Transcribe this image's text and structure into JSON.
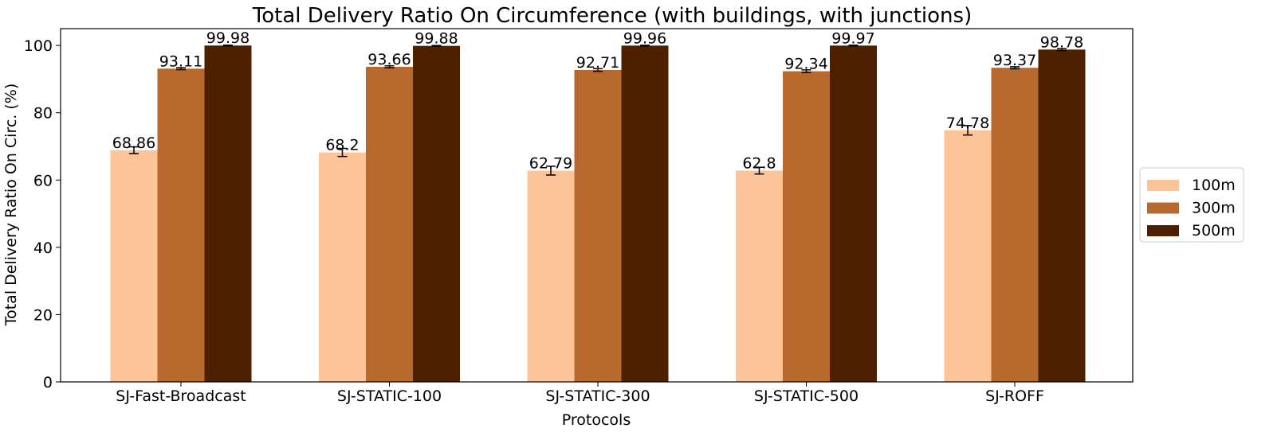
{
  "chart_data": {
    "type": "bar",
    "title": "Total Delivery Ratio On Circumference (with buildings, with junctions)",
    "xlabel": "Protocols",
    "ylabel": "Total Delivery Ratio On Circ. (%)",
    "ylim": [
      0,
      105
    ],
    "yticks": [
      0,
      20,
      40,
      60,
      80,
      100
    ],
    "categories": [
      "SJ-Fast-Broadcast",
      "SJ-STATIC-100",
      "SJ-STATIC-300",
      "SJ-STATIC-500",
      "SJ-ROFF"
    ],
    "series": [
      {
        "name": "100m",
        "color": "#fdc597",
        "values": [
          68.86,
          68.2,
          62.79,
          62.8,
          74.78
        ],
        "labels": [
          "68.86",
          "68.2",
          "62.79",
          "62.8",
          "74.78"
        ],
        "errors": [
          1.0,
          1.2,
          1.3,
          1.0,
          1.4
        ]
      },
      {
        "name": "300m",
        "color": "#b8692d",
        "values": [
          93.11,
          93.66,
          92.71,
          92.34,
          93.37
        ],
        "labels": [
          "93.11",
          "93.66",
          "92.71",
          "92.34",
          "93.37"
        ],
        "errors": [
          0.3,
          0.3,
          0.4,
          0.4,
          0.3
        ]
      },
      {
        "name": "500m",
        "color": "#4d2100",
        "values": [
          99.98,
          99.88,
          99.96,
          99.97,
          98.78
        ],
        "labels": [
          "99.98",
          "99.88",
          "99.96",
          "99.97",
          "98.78"
        ],
        "errors": [
          0.1,
          0.1,
          0.1,
          0.1,
          0.3
        ]
      }
    ],
    "legend": {
      "placement": "center-right",
      "entries": [
        "100m",
        "300m",
        "500m"
      ]
    },
    "grid": false
  }
}
